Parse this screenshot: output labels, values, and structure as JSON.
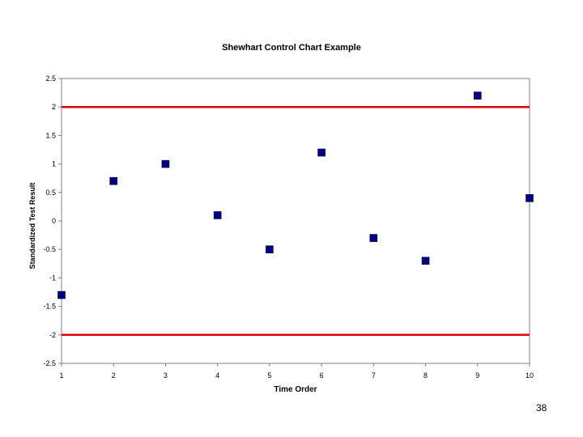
{
  "chart_data": {
    "type": "scatter",
    "title": "Shewhart Control Chart Example",
    "xlabel": "Time Order",
    "ylabel": "Standardized Test Result",
    "x": [
      1,
      2,
      3,
      4,
      5,
      6,
      7,
      8,
      9,
      10
    ],
    "y": [
      -1.3,
      0.7,
      1.0,
      0.1,
      -0.5,
      1.2,
      -0.3,
      -0.7,
      2.2,
      0.4
    ],
    "xlim": [
      1,
      10
    ],
    "ylim": [
      -2.5,
      2.5
    ],
    "x_ticks": [
      "1",
      "2",
      "3",
      "4",
      "5",
      "6",
      "7",
      "8",
      "9",
      "10"
    ],
    "y_ticks": [
      "2.5",
      "2",
      "1.5",
      "1",
      "0.5",
      "0",
      "-0.5",
      "-1",
      "-1.5",
      "-2",
      "-2.5"
    ],
    "y_tick_values": [
      2.5,
      2,
      1.5,
      1,
      0.5,
      0,
      -0.5,
      -1,
      -1.5,
      -2,
      -2.5
    ],
    "control_limits": {
      "upper": 2,
      "lower": -2
    },
    "grid": false,
    "legend": "none",
    "colors": {
      "marker": "#000080",
      "limit_line": "#e00000",
      "axes": "#808080"
    }
  },
  "page_number": "38"
}
